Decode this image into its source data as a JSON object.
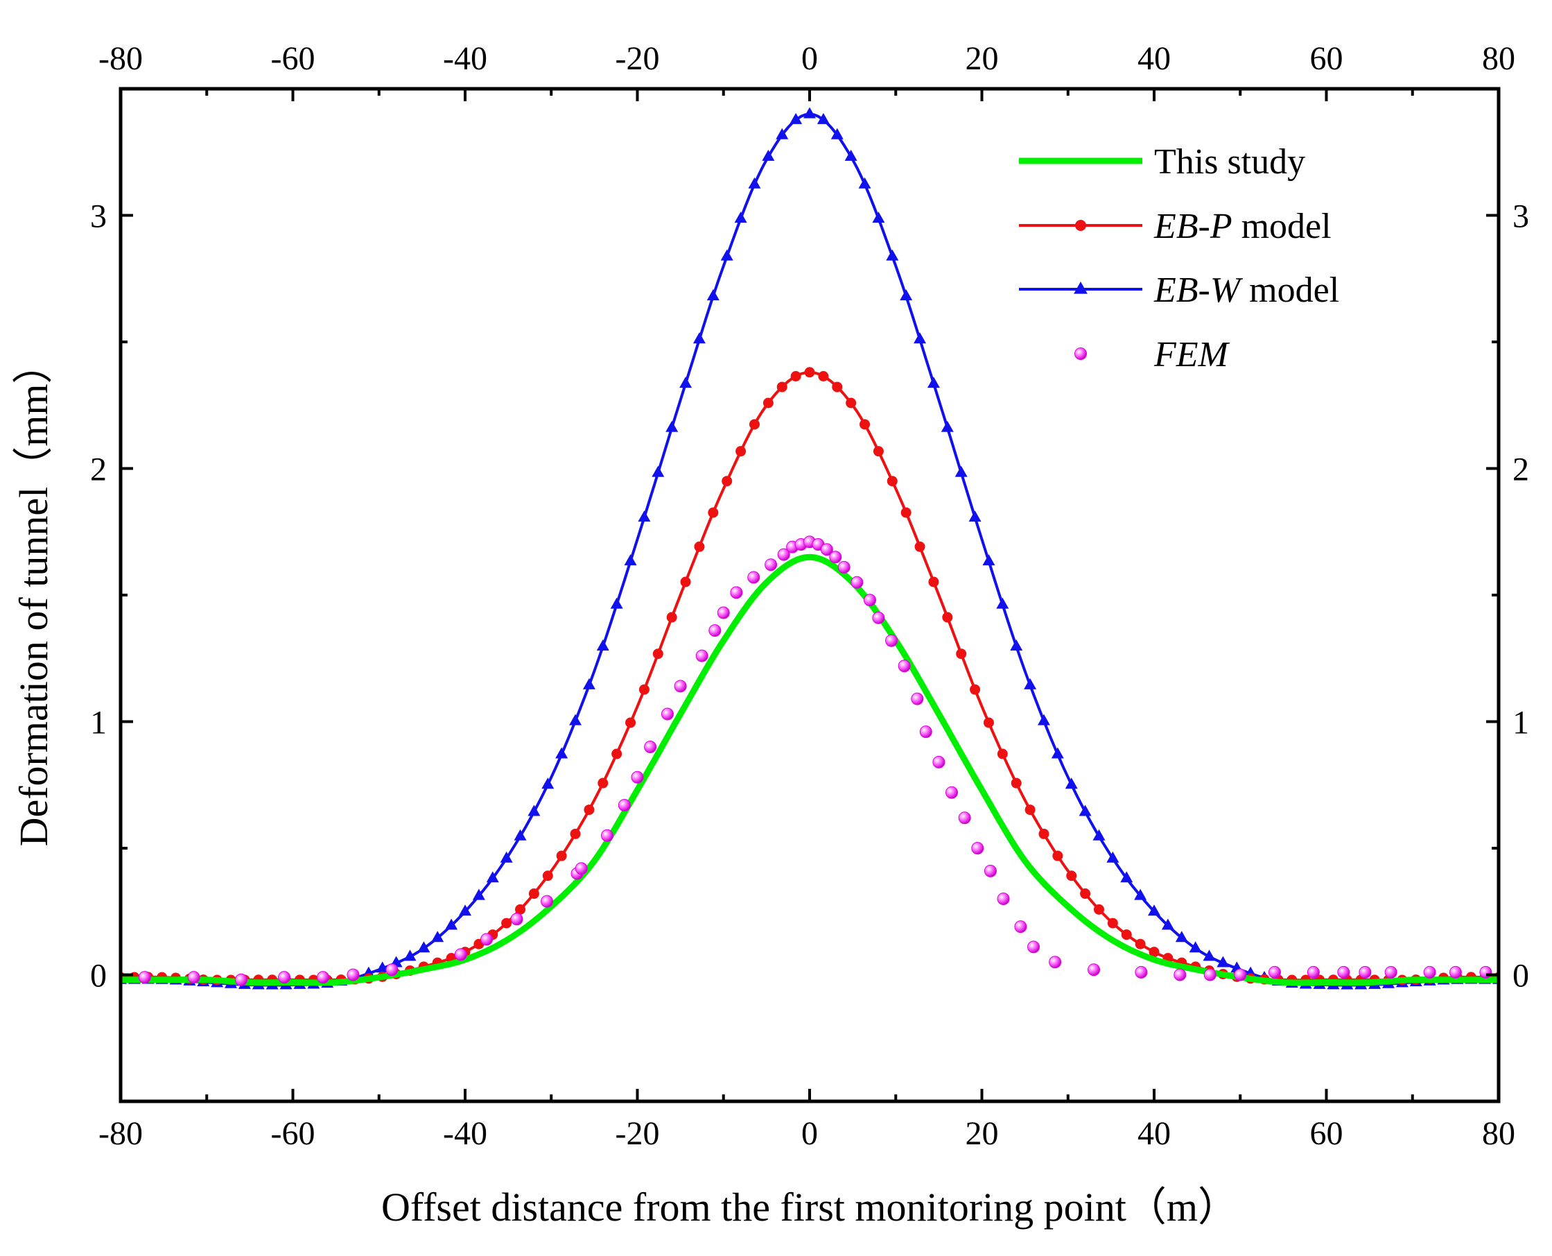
{
  "chart_data": {
    "type": "line",
    "title": "",
    "xlabel": "Offset distance from the first monitoring point（m）",
    "ylabel": "Deformation of tunnel（mm）",
    "xlim": [
      -80,
      80
    ],
    "ylim": [
      -0.5,
      3.5
    ],
    "x_ticks": [
      -80,
      -60,
      -40,
      -20,
      0,
      20,
      40,
      60,
      80
    ],
    "x_tick_labels": [
      "-80",
      "-60",
      "-40",
      "-20",
      "0",
      "20",
      "40",
      "60",
      "80"
    ],
    "y_ticks": [
      0,
      1,
      2,
      3
    ],
    "y_tick_labels": [
      "0",
      "1",
      "2",
      "3"
    ],
    "legend_position": "top-right",
    "series": [
      {
        "name": "This study",
        "legend_label": {
          "italic": "",
          "normal": "This study"
        },
        "style": "line",
        "color": "#00ee00",
        "peak": 1.65,
        "x": [
          -80,
          -75,
          -70,
          -65,
          -60,
          -55,
          -50,
          -45,
          -40,
          -35,
          -30,
          -25,
          -20,
          -15,
          -10,
          -5,
          0,
          5,
          10,
          15,
          20,
          25,
          30,
          35,
          40,
          45,
          50,
          55,
          60,
          65,
          70,
          75,
          80
        ],
        "y": [
          -0.02,
          -0.02,
          -0.02,
          -0.03,
          -0.03,
          -0.03,
          -0.01,
          0.02,
          0.06,
          0.14,
          0.27,
          0.45,
          0.73,
          1.03,
          1.32,
          1.55,
          1.65,
          1.55,
          1.32,
          1.03,
          0.73,
          0.45,
          0.27,
          0.14,
          0.06,
          0.02,
          -0.01,
          -0.03,
          -0.03,
          -0.03,
          -0.02,
          -0.02,
          -0.02
        ]
      },
      {
        "name": "EB-P model",
        "legend_label": {
          "italic": "EB-P",
          "normal": " model"
        },
        "style": "line-circle",
        "color": "#ee1111",
        "peak": 2.38,
        "x": [
          -80,
          -75,
          -70,
          -65,
          -60,
          -55,
          -50,
          -45,
          -40,
          -35,
          -30,
          -25,
          -20,
          -15,
          -10,
          -5,
          0,
          5,
          10,
          15,
          20,
          25,
          30,
          35,
          40,
          45,
          50,
          55,
          60,
          65,
          70,
          75,
          80
        ],
        "y": [
          -0.01,
          -0.01,
          -0.02,
          -0.02,
          -0.02,
          -0.02,
          -0.01,
          0.03,
          0.09,
          0.21,
          0.41,
          0.69,
          1.06,
          1.5,
          1.92,
          2.25,
          2.38,
          2.25,
          1.92,
          1.5,
          1.06,
          0.69,
          0.41,
          0.21,
          0.09,
          0.03,
          -0.01,
          -0.02,
          -0.02,
          -0.02,
          -0.02,
          -0.01,
          -0.01
        ]
      },
      {
        "name": "EB-W model",
        "legend_label": {
          "italic": "EB-W",
          "normal": " model"
        },
        "style": "line-triangle",
        "color": "#1111ee",
        "peak": 3.4,
        "x": [
          -80,
          -75,
          -70,
          -65,
          -60,
          -55,
          -50,
          -45,
          -40,
          -35,
          -30,
          -25,
          -20,
          -15,
          -10,
          -5,
          0,
          5,
          10,
          15,
          20,
          25,
          30,
          35,
          40,
          45,
          50,
          55,
          60,
          65,
          70,
          75,
          80
        ],
        "y": [
          -0.02,
          -0.02,
          -0.03,
          -0.04,
          -0.04,
          -0.03,
          0.02,
          0.1,
          0.25,
          0.47,
          0.78,
          1.2,
          1.72,
          2.27,
          2.8,
          3.22,
          3.4,
          3.22,
          2.8,
          2.27,
          1.72,
          1.2,
          0.78,
          0.47,
          0.25,
          0.1,
          0.02,
          -0.03,
          -0.04,
          -0.04,
          -0.03,
          -0.02,
          -0.02
        ]
      },
      {
        "name": "FEM",
        "legend_label": {
          "italic": "FEM",
          "normal": ""
        },
        "style": "scatter",
        "color": "#ff22ff",
        "x": [
          -77.2,
          -71.5,
          -66,
          -61,
          -56.5,
          -53,
          -48.5,
          -40.5,
          -37.5,
          -34,
          -30.5,
          -27,
          -26.5,
          -23.5,
          -21.5,
          -20,
          -18.5,
          -16.5,
          -15,
          -12.5,
          -11,
          -10,
          -8.5,
          -6.5,
          -4.5,
          -3,
          -2,
          -1,
          0,
          1,
          2,
          3,
          4,
          5.5,
          7,
          8,
          9.5,
          11,
          12.5,
          13.5,
          15,
          16.5,
          18,
          19.5,
          21,
          22.5,
          24.5,
          26,
          28.5,
          33,
          38.5,
          43,
          46.5,
          50,
          54,
          58.5,
          62,
          64.5,
          67.5,
          72,
          75,
          78.5
        ],
        "y": [
          -0.01,
          -0.01,
          -0.02,
          -0.01,
          -0.01,
          0.0,
          0.02,
          0.08,
          0.14,
          0.22,
          0.29,
          0.4,
          0.42,
          0.55,
          0.67,
          0.78,
          0.9,
          1.03,
          1.14,
          1.26,
          1.36,
          1.43,
          1.51,
          1.57,
          1.62,
          1.66,
          1.69,
          1.7,
          1.71,
          1.7,
          1.68,
          1.65,
          1.61,
          1.55,
          1.48,
          1.41,
          1.32,
          1.22,
          1.09,
          0.96,
          0.84,
          0.72,
          0.62,
          0.5,
          0.41,
          0.3,
          0.19,
          0.11,
          0.05,
          0.02,
          0.01,
          0.0,
          0.0,
          0.0,
          0.01,
          0.01,
          0.01,
          0.01,
          0.01,
          0.01,
          0.01,
          0.01
        ]
      }
    ]
  },
  "colors": {
    "axis": "#000000",
    "background": "#ffffff"
  }
}
